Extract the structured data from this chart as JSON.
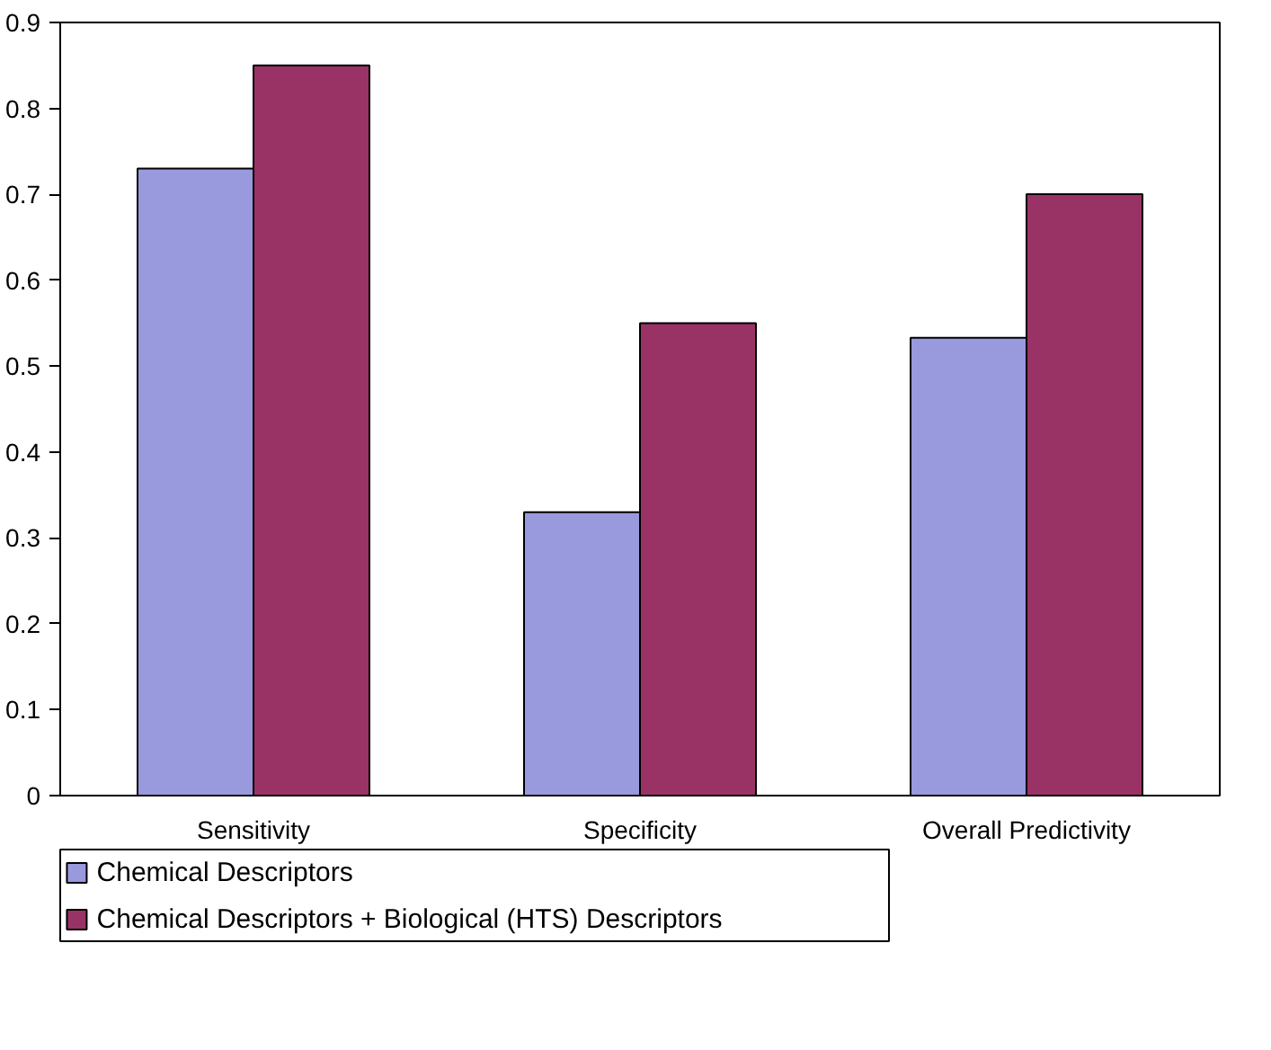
{
  "chart_data": {
    "type": "bar",
    "categories": [
      "Sensitivity",
      "Specificity",
      "Overall Predictivity"
    ],
    "series": [
      {
        "name": "Chemical Descriptors",
        "color": "#9999dd",
        "values": [
          0.73,
          0.33,
          0.533
        ]
      },
      {
        "name": "Chemical Descriptors + Biological (HTS) Descriptors",
        "color": "#993366",
        "values": [
          0.85,
          0.55,
          0.7
        ]
      }
    ],
    "ylim": [
      0,
      0.9
    ],
    "yticks": [
      0,
      0.1,
      0.2,
      0.3,
      0.4,
      0.5,
      0.6,
      0.7,
      0.8,
      0.9
    ],
    "grid": false,
    "legend": "bottom"
  }
}
